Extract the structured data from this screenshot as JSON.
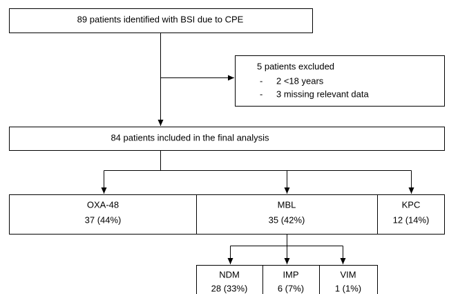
{
  "identified": "89 patients identified with BSI due to CPE",
  "excluded": {
    "title": "5 patients excluded",
    "bullet": "-",
    "items": [
      "2 <18 years",
      "3 missing relevant data"
    ]
  },
  "included": "84 patients included in the final analysis",
  "groups": [
    {
      "name": "OXA-48",
      "count": "37 (44%)"
    },
    {
      "name": "MBL",
      "count": "35 (42%)"
    },
    {
      "name": "KPC",
      "count": "12 (14%)"
    }
  ],
  "subgroups": [
    {
      "name": "NDM",
      "count": "28 (33%)"
    },
    {
      "name": "IMP",
      "count": "6 (7%)"
    },
    {
      "name": "VIM",
      "count": "1 (1%)"
    }
  ]
}
